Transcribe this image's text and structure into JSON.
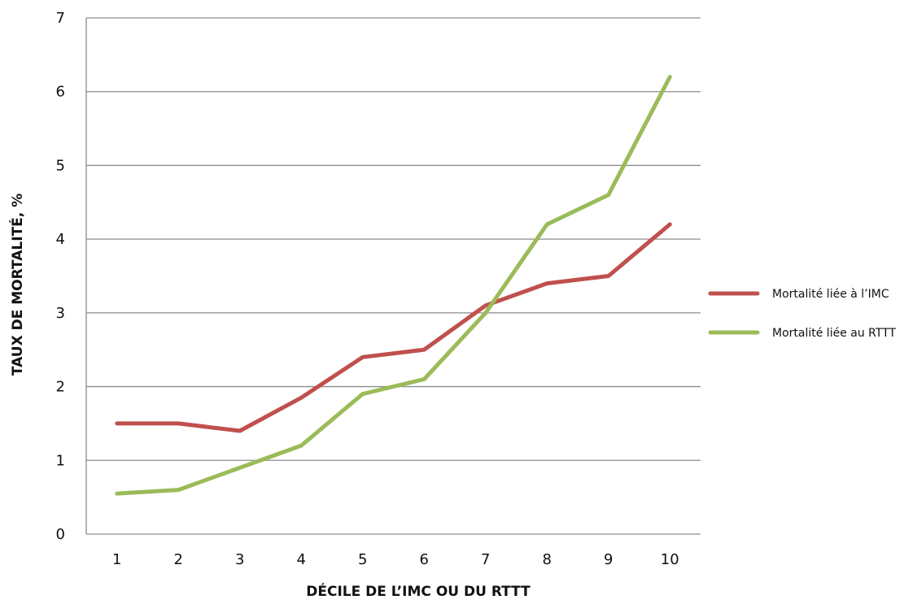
{
  "chart_data": {
    "type": "line",
    "title": "",
    "xlabel": "DÉCILE DE L’IMC OU DU RTTT",
    "ylabel": "TAUX DE MORTALITÉ, %",
    "x": [
      1,
      2,
      3,
      4,
      5,
      6,
      7,
      8,
      9,
      10
    ],
    "x_tick_labels": [
      "1",
      "2",
      "3",
      "4",
      "5",
      "6",
      "7",
      "8",
      "9",
      "10"
    ],
    "y_ticks": [
      0,
      1,
      2,
      3,
      4,
      5,
      6,
      7
    ],
    "y_tick_labels": [
      "0",
      "1",
      "2",
      "3",
      "4",
      "5",
      "6",
      "7"
    ],
    "ylim": [
      0,
      7
    ],
    "grid": "horizontal",
    "legend_position": "right",
    "series": [
      {
        "name": "Mortalité liée à l’IMC",
        "color": "#c0504d",
        "values": [
          1.5,
          1.5,
          1.4,
          1.85,
          2.4,
          2.5,
          3.1,
          3.4,
          3.5,
          4.2
        ]
      },
      {
        "name": "Mortalité liée au RTTT",
        "color": "#9bbb59",
        "values": [
          0.55,
          0.6,
          0.9,
          1.2,
          1.9,
          2.1,
          3.0,
          4.2,
          4.6,
          6.2
        ]
      }
    ]
  }
}
